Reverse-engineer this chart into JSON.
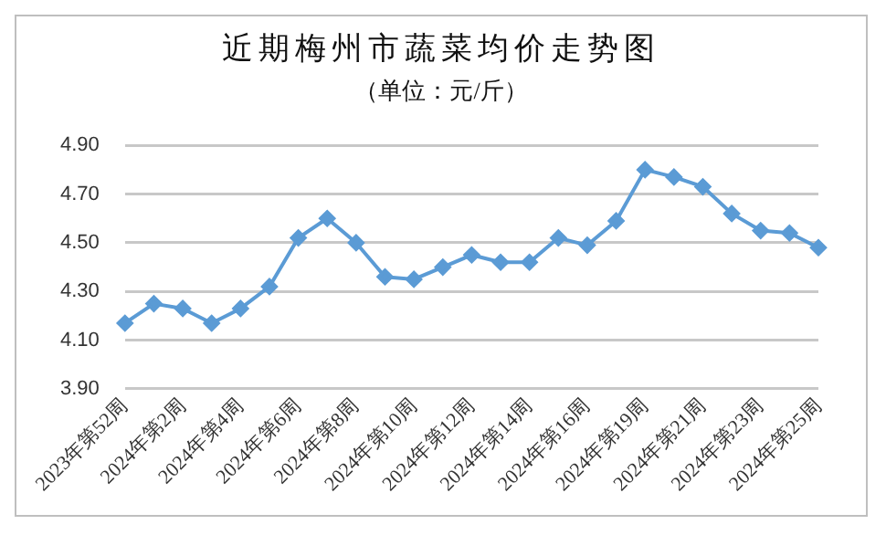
{
  "chart_data": {
    "type": "line",
    "title": "近期梅州市蔬菜均价走势图",
    "subtitle": "（单位：元/斤）",
    "categories": [
      "2023年第52周",
      null,
      "2024年第2周",
      null,
      "2024年第4周",
      null,
      "2024年第6周",
      null,
      "2024年第8周",
      null,
      "2024年第10周",
      null,
      "2024年第12周",
      null,
      "2024年第14周",
      null,
      "2024年第16周",
      null,
      "2024年第19周",
      null,
      "2024年第21周",
      null,
      "2024年第23周",
      null,
      "2024年第25周"
    ],
    "series": [
      {
        "color": "#5b9bd5",
        "values": [
          4.17,
          4.25,
          4.23,
          4.17,
          4.23,
          4.32,
          4.52,
          4.6,
          4.5,
          4.36,
          4.35,
          4.4,
          4.45,
          4.42,
          4.42,
          4.52,
          4.49,
          4.59,
          4.8,
          4.77,
          4.73,
          4.62,
          4.55,
          4.54,
          4.48
        ]
      }
    ],
    "ylim": [
      3.9,
      4.9
    ],
    "yticks": [
      {
        "value": 3.9,
        "label": "3.90"
      },
      {
        "value": 4.1,
        "label": "4.10"
      },
      {
        "value": 4.3,
        "label": "4.30"
      },
      {
        "value": 4.5,
        "label": "4.50"
      },
      {
        "value": 4.7,
        "label": "4.70"
      },
      {
        "value": 4.9,
        "label": "4.90"
      }
    ],
    "grid": "y",
    "legend": false,
    "marker": "diamond",
    "line_style": "solid"
  }
}
